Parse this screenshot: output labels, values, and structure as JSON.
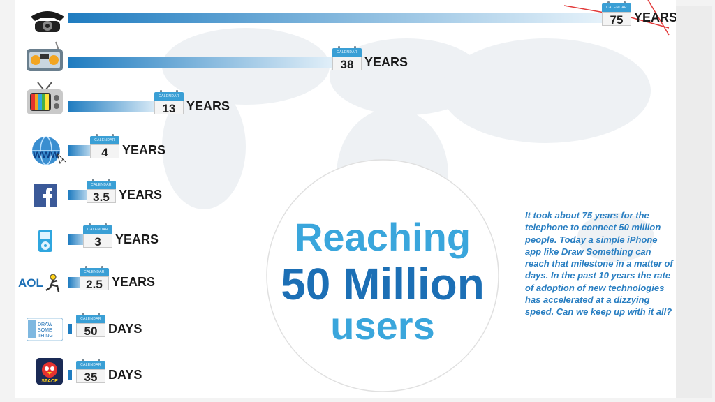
{
  "headline": {
    "line1": "Reaching",
    "line2": "50 Million",
    "line3": "users"
  },
  "blurb": "It took about 75 years for the telephone to connect 50 million people. Today a simple iPhone app like Draw Something can reach that milestone in a matter of days. In the past 10 years the rate of adoption of new technologies has accelerated at a dizzying speed. Can we keep up with it all?",
  "calendar_label": "CALENDAR",
  "icons": {
    "aol_text": "AOL",
    "draw_something_text": "DRAW SOME THING",
    "angry_birds_text": "SPACE"
  },
  "colors": {
    "headline_light": "#3aa6dc",
    "headline_dark": "#1c6fb5",
    "bar_dark": "#1f7cc0",
    "bar_light": "#e6f2fa"
  },
  "chart_data": {
    "type": "bar",
    "orientation": "horizontal",
    "title": "Reaching 50 Million users",
    "categories": [
      "Telephone",
      "Radio",
      "Television",
      "World Wide Web",
      "Facebook",
      "iPod",
      "AOL",
      "Draw Something",
      "Angry Birds Space"
    ],
    "category_icons": [
      "telephone-icon",
      "radio-icon",
      "television-icon",
      "www-icon",
      "facebook-icon",
      "ipod-icon",
      "aol-icon",
      "draw-something-icon",
      "angry-birds-space-icon"
    ],
    "values_years": [
      75,
      38,
      13,
      4,
      3.5,
      3,
      2.5,
      0.137,
      0.096
    ],
    "labels": [
      {
        "value": "75",
        "unit": "YEARS"
      },
      {
        "value": "38",
        "unit": "YEARS"
      },
      {
        "value": "13",
        "unit": "YEARS"
      },
      {
        "value": "4",
        "unit": "YEARS"
      },
      {
        "value": "3.5",
        "unit": "YEARS"
      },
      {
        "value": "3",
        "unit": "YEARS"
      },
      {
        "value": "2.5",
        "unit": "YEARS"
      },
      {
        "value": "50",
        "unit": "DAYS"
      },
      {
        "value": "35",
        "unit": "DAYS"
      }
    ]
  }
}
